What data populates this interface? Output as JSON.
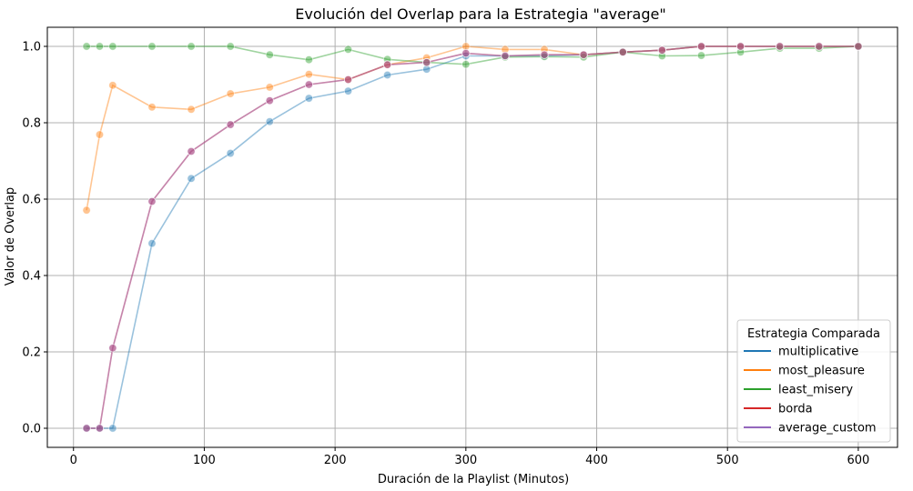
{
  "chart_data": {
    "type": "line",
    "title": "Evolución del Overlap para la Estrategia \"average\"",
    "xlabel": "Duración de la Playlist (Minutos)",
    "ylabel": "Valor de Overlap",
    "xlim": [
      -20,
      630
    ],
    "ylim": [
      -0.05,
      1.05
    ],
    "xticks": [
      "0",
      "100",
      "200",
      "300",
      "400",
      "500",
      "600"
    ],
    "yticks": [
      "0.0",
      "0.2",
      "0.4",
      "0.6",
      "0.8",
      "1.0"
    ],
    "grid": true,
    "legend": {
      "title": "Estrategia Comparada",
      "placement": "lower-right"
    },
    "x": [
      10,
      20,
      30,
      60,
      90,
      120,
      150,
      180,
      210,
      240,
      270,
      300,
      330,
      360,
      390,
      420,
      450,
      480,
      510,
      540,
      570,
      600
    ],
    "series": [
      {
        "name": "multiplicative",
        "color": "#1f77b4",
        "values": [
          0,
          0,
          0,
          0.484,
          0.654,
          0.72,
          0.803,
          0.864,
          0.883,
          0.925,
          0.94,
          0.975,
          0.975,
          0.975,
          0.978,
          0.985,
          0.99,
          1.0,
          1.0,
          1.0,
          1.0,
          1.0
        ]
      },
      {
        "name": "most_pleasure",
        "color": "#ff7f0e",
        "values": [
          0.571,
          0.769,
          0.898,
          0.841,
          0.835,
          0.876,
          0.893,
          0.927,
          0.913,
          0.952,
          0.97,
          1.0,
          0.992,
          0.992,
          0.978,
          0.985,
          0.99,
          1.0,
          1.0,
          1.0,
          1.0,
          1.0
        ]
      },
      {
        "name": "least_misery",
        "color": "#2ca02c",
        "values": [
          1.0,
          1.0,
          1.0,
          1.0,
          1.0,
          1.0,
          0.978,
          0.965,
          0.992,
          0.966,
          0.958,
          0.953,
          0.972,
          0.973,
          0.972,
          0.985,
          0.975,
          0.976,
          0.985,
          0.995,
          0.995,
          1.0
        ]
      },
      {
        "name": "borda",
        "color": "#d62728",
        "values": [
          0,
          0,
          0.21,
          0.594,
          0.725,
          0.795,
          0.858,
          0.9,
          0.913,
          0.952,
          0.958,
          0.982,
          0.975,
          0.978,
          0.978,
          0.985,
          0.99,
          1.0,
          1.0,
          1.0,
          1.0,
          1.0
        ]
      },
      {
        "name": "average_custom",
        "color": "#9467bd",
        "values": [
          0,
          0,
          0.21,
          0.594,
          0.725,
          0.795,
          0.858,
          0.9,
          0.913,
          0.952,
          0.958,
          0.982,
          0.975,
          0.978,
          0.978,
          0.985,
          0.99,
          1.0,
          1.0,
          1.0,
          1.0,
          1.0
        ]
      }
    ]
  }
}
